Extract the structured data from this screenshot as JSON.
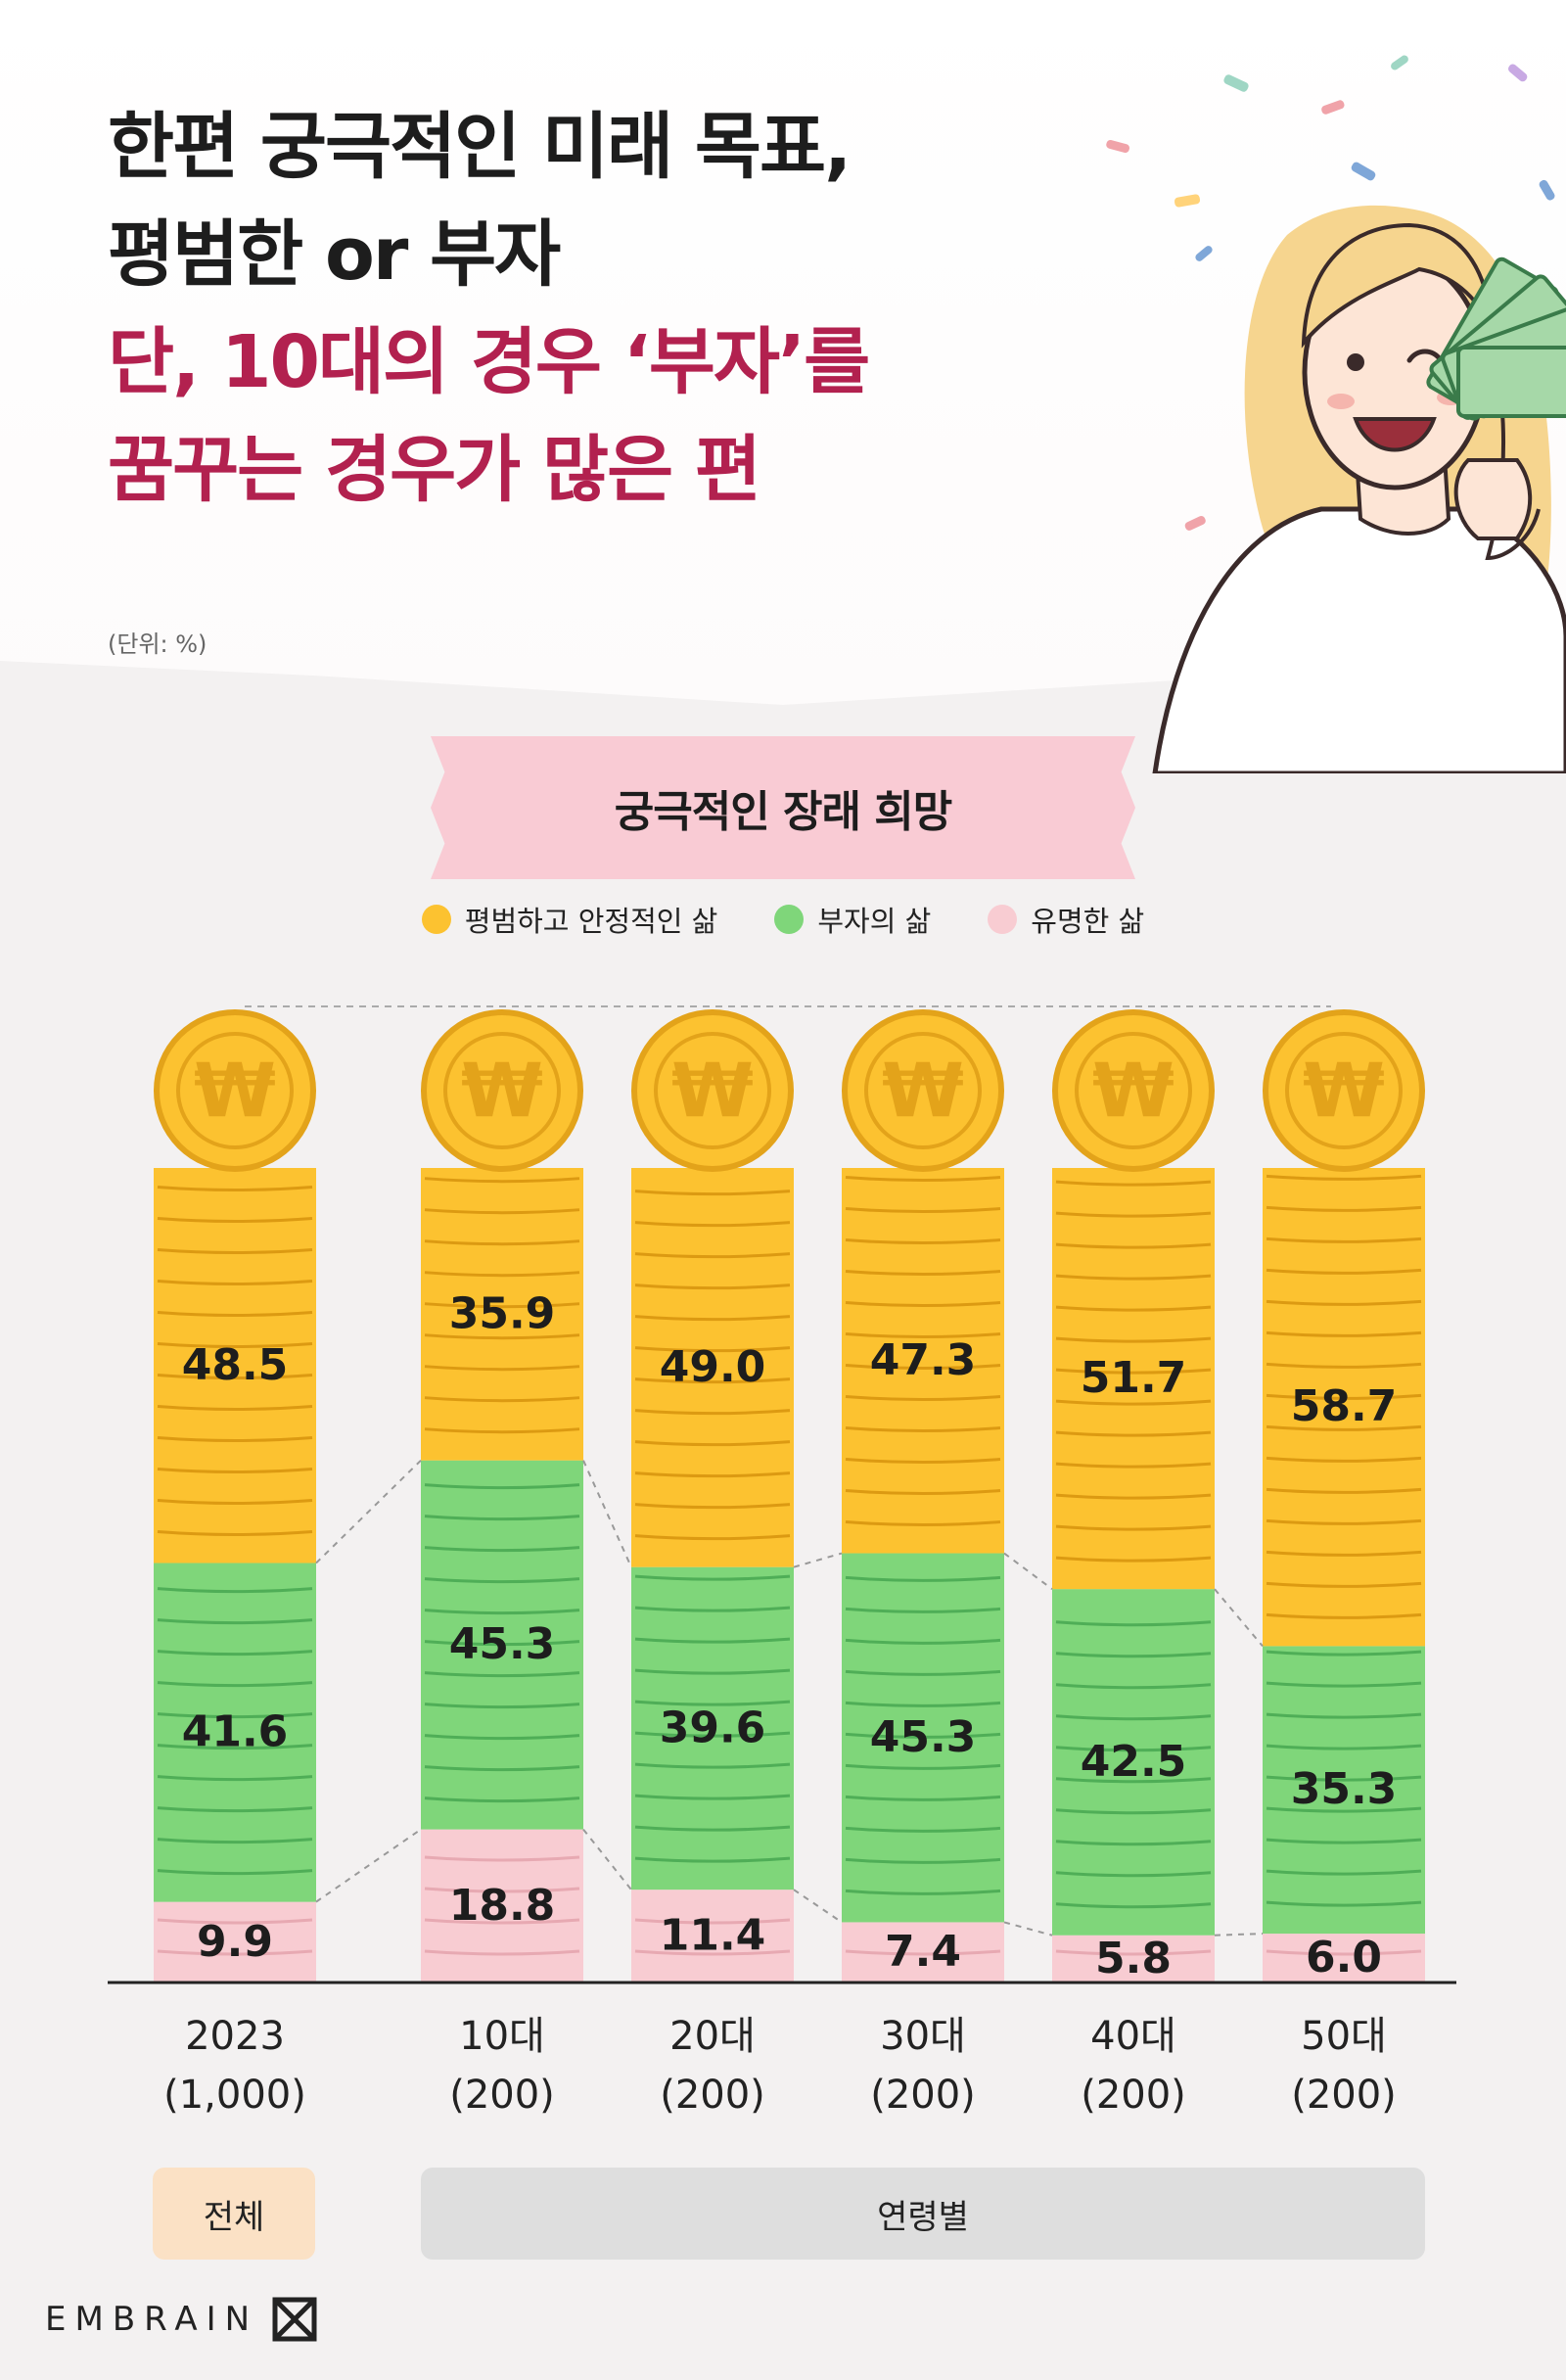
{
  "headline": {
    "line1": "한편 궁극적인 미래 목표,",
    "line2": "평범한 or 부자",
    "line3": "단, 10대의 경우 ‘부자’를",
    "line4": "꿈꾸는 경우가 많은 편"
  },
  "unit_note": "(단위: %)",
  "banner_title": "궁극적인 장래 희망",
  "legend": [
    {
      "label": "평범하고 안정적인 삶",
      "color": "#fcc230"
    },
    {
      "label": "부자의 삶",
      "color": "#7fd67a"
    },
    {
      "label": "유명한 삶",
      "color": "#f8ccd2"
    }
  ],
  "groups": {
    "all": "전체",
    "age": "연령별"
  },
  "brand": "EMBRAIN",
  "coin_symbol": "₩",
  "colors": {
    "ordinary": "#fcc230",
    "rich": "#7fd67a",
    "famous": "#f8ccd2",
    "accent": "#b2214f"
  },
  "chart_data": {
    "type": "bar",
    "stacked": true,
    "categories": [
      "2023\n(1,000)",
      "10대\n(200)",
      "20대\n(200)",
      "30대\n(200)",
      "40대\n(200)",
      "50대\n(200)"
    ],
    "category_lines": [
      [
        "2023",
        "(1,000)"
      ],
      [
        "10대",
        "(200)"
      ],
      [
        "20대",
        "(200)"
      ],
      [
        "30대",
        "(200)"
      ],
      [
        "40대",
        "(200)"
      ],
      [
        "50대",
        "(200)"
      ]
    ],
    "series": [
      {
        "name": "유명한 삶",
        "values": [
          9.9,
          18.8,
          11.4,
          7.4,
          5.8,
          6.0
        ]
      },
      {
        "name": "부자의 삶",
        "values": [
          41.6,
          45.3,
          39.6,
          45.3,
          42.5,
          35.3
        ]
      },
      {
        "name": "평범하고 안정적인 삶",
        "values": [
          48.5,
          35.9,
          49.0,
          47.3,
          51.7,
          58.7
        ]
      }
    ],
    "value_labels": [
      [
        "9.9",
        "18.8",
        "11.4",
        "7.4",
        "5.8",
        "6.0"
      ],
      [
        "41.6",
        "45.3",
        "39.6",
        "45.3",
        "42.5",
        "35.3"
      ],
      [
        "48.5",
        "35.9",
        "49.0",
        "47.3",
        "51.7",
        "58.7"
      ]
    ],
    "ylim": [
      0,
      100
    ],
    "unit": "%",
    "legend_position": "top-center",
    "grid": false
  }
}
